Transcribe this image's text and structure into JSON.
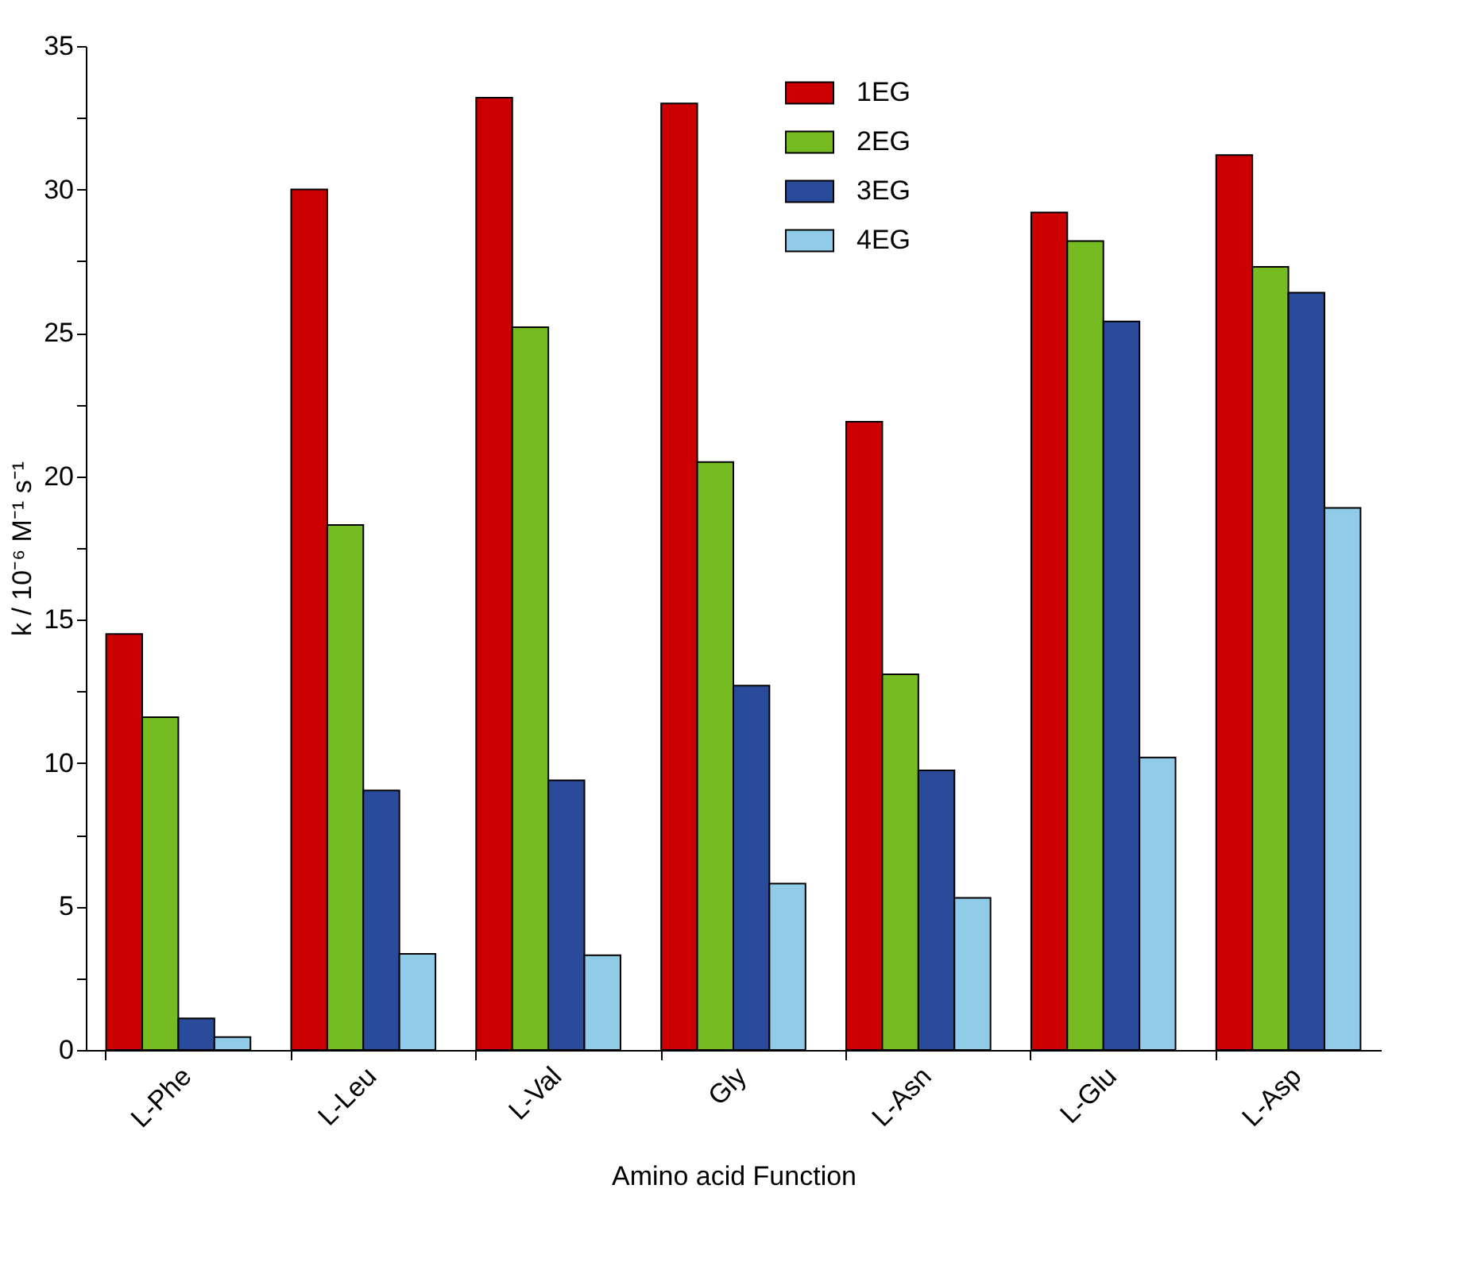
{
  "chart_data": {
    "type": "bar",
    "xlabel": "Amino acid Function",
    "ylabel": "k / 10⁻⁶ M⁻¹ s⁻¹",
    "categories": [
      "L-Phe",
      "L-Leu",
      "L-Val",
      "Gly",
      "L-Asn",
      "L-Glu",
      "L-Asp"
    ],
    "series": [
      {
        "name": "1EG",
        "color": "#cc0000",
        "values": [
          14.5,
          30.0,
          33.2,
          33.0,
          21.9,
          29.2,
          31.2
        ]
      },
      {
        "name": "2EG",
        "color": "#77bb22",
        "values": [
          11.6,
          18.3,
          25.2,
          20.5,
          13.1,
          28.2,
          27.3
        ]
      },
      {
        "name": "3EG",
        "color": "#2a4a9a",
        "values": [
          1.1,
          9.05,
          9.4,
          12.7,
          9.75,
          25.4,
          26.4
        ]
      },
      {
        "name": "4EG",
        "color": "#90cce8",
        "values": [
          0.45,
          3.35,
          3.3,
          5.8,
          5.3,
          10.2,
          18.9
        ]
      }
    ],
    "ylim": [
      0,
      35
    ],
    "yticks": [
      0,
      {
        "value": 2.5,
        "label": null
      },
      5,
      {
        "value": 7.5,
        "label": null
      },
      10,
      {
        "value": 12.5,
        "label": null
      },
      15,
      {
        "value": 17.5,
        "label": null
      },
      20,
      {
        "value": 22.5,
        "label": null
      },
      25,
      {
        "value": 27.5,
        "label": null
      },
      30,
      {
        "value": 32.5,
        "label": null
      },
      35
    ],
    "grid": false,
    "legend": "top right"
  }
}
